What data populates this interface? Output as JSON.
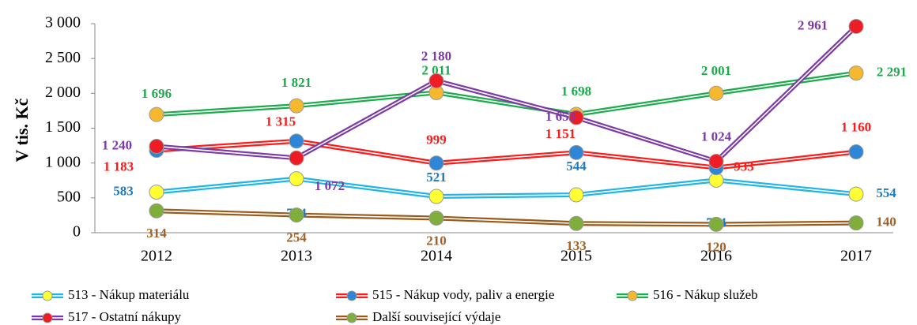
{
  "chart_data": {
    "type": "line",
    "y_label": "V tis. Kč",
    "categories": [
      "2012",
      "2013",
      "2014",
      "2015",
      "2016",
      "2017"
    ],
    "ylim": [
      0,
      3000
    ],
    "yticks": [
      0,
      500,
      {
        "value": 1000,
        "label": "1 000"
      },
      {
        "value": 1500,
        "label": "1 500"
      },
      {
        "value": 2000,
        "label": "2 000"
      },
      {
        "value": 2500,
        "label": "2 500"
      },
      {
        "value": 3000,
        "label": "3 000"
      }
    ],
    "series": [
      {
        "name": "513 - Nákup materiálu",
        "color": "#1fb5e8",
        "marker_color": "#ffff33",
        "label_color": "#1f7bc4",
        "values": [
          583,
          774,
          521,
          544,
          754,
          554
        ],
        "value_labels": [
          "583",
          "774",
          "521",
          "544",
          "754",
          "554"
        ]
      },
      {
        "name": "515 - Nákup vody, paliv a energie",
        "color": "#ff1a1a",
        "marker_color": "#2e86d6",
        "label_color": "#ff1a1a",
        "values": [
          1183,
          1315,
          999,
          1151,
          933,
          1160
        ],
        "value_labels": [
          "1 183",
          "1 315",
          "999",
          "1 151",
          "933",
          "1 160"
        ]
      },
      {
        "name": "516 - Nákup služeb",
        "color": "#1aab4a",
        "marker_color": "#f5b82e",
        "label_color": "#1aab4a",
        "values": [
          1696,
          1821,
          2011,
          1698,
          2001,
          2291
        ],
        "value_labels": [
          "1 696",
          "1 821",
          "2 011",
          "1 698",
          "2 001",
          "2 291"
        ]
      },
      {
        "name": "517 - Ostatní nákupy",
        "color": "#7b3aa6",
        "marker_color": "#ee1c24",
        "label_color": "#7b3aa6",
        "values": [
          1240,
          1072,
          2180,
          1653,
          1024,
          2961
        ],
        "value_labels": [
          "1 240",
          "1 072",
          "2 180",
          "1 653",
          "1 024",
          "2 961"
        ]
      },
      {
        "name": "Další související výdaje",
        "color": "#9b5a1a",
        "marker_color": "#7fae3a",
        "label_color": "#a0622a",
        "values": [
          314,
          254,
          210,
          133,
          120,
          140
        ],
        "value_labels": [
          "314",
          "254",
          "210",
          "133",
          "120",
          "140"
        ]
      }
    ]
  }
}
